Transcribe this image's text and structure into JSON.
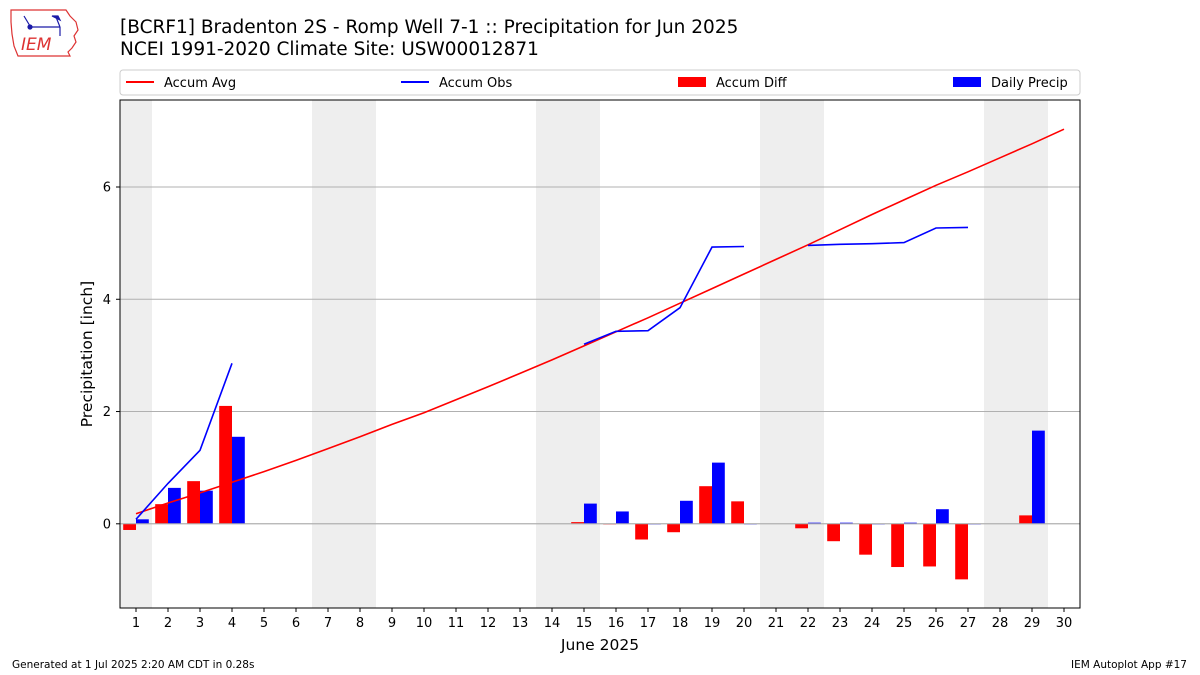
{
  "header": {
    "title_line1": "[BCRF1] Bradenton 2S - Romp Well 7-1 :: Precipitation for Jun 2025",
    "title_line2": "NCEI 1991-2020 Climate Site: USW00012871",
    "logo_text": "IEM"
  },
  "footer": {
    "generated": "Generated at 1 Jul 2025 2:20 AM CDT in 0.28s",
    "app": "IEM Autoplot App #17"
  },
  "colors": {
    "accum_avg": "#ff0000",
    "accum_obs": "#0000ff",
    "accum_diff": "#ff0000",
    "daily_precip": "#0000ff",
    "weekend_shade": "#eeeeee",
    "grid": "#b0b0b0"
  },
  "chart_data": {
    "type": "bar",
    "xlabel": "June 2025",
    "ylabel": "Precipitation [inch]",
    "xlim": [
      0.5,
      30.5
    ],
    "ylim": [
      -1.5,
      7.55
    ],
    "yticks": [
      0,
      2,
      4,
      6
    ],
    "grid": "horizontal",
    "legend_position": "top",
    "days": [
      1,
      2,
      3,
      4,
      5,
      6,
      7,
      8,
      9,
      10,
      11,
      12,
      13,
      14,
      15,
      16,
      17,
      18,
      19,
      20,
      21,
      22,
      23,
      24,
      25,
      26,
      27,
      28,
      29,
      30
    ],
    "weekend_days": [
      1,
      7,
      8,
      14,
      15,
      21,
      22,
      28,
      29
    ],
    "series": [
      {
        "name": "Accum Avg",
        "type": "line",
        "color": "#ff0000",
        "values": [
          0.18,
          0.37,
          0.55,
          0.74,
          0.93,
          1.13,
          1.34,
          1.55,
          1.77,
          1.98,
          2.21,
          2.44,
          2.68,
          2.92,
          3.17,
          3.42,
          3.67,
          3.93,
          4.19,
          4.45,
          4.71,
          4.97,
          5.24,
          5.51,
          5.77,
          6.03,
          6.27,
          6.52,
          6.77,
          7.03
        ]
      },
      {
        "name": "Accum Obs",
        "type": "line",
        "color": "#0000ff",
        "values": [
          0.08,
          0.72,
          1.31,
          2.86,
          null,
          null,
          null,
          null,
          null,
          null,
          null,
          null,
          null,
          null,
          3.2,
          3.43,
          3.44,
          3.85,
          4.93,
          4.94,
          null,
          4.96,
          4.98,
          4.99,
          5.01,
          5.27,
          5.28,
          null,
          null,
          null
        ]
      },
      {
        "name": "Accum Diff",
        "type": "bar",
        "color": "#ff0000",
        "values": [
          -0.11,
          0.35,
          0.76,
          2.1,
          null,
          null,
          null,
          null,
          null,
          null,
          null,
          null,
          null,
          null,
          0.03,
          -0.01,
          -0.28,
          -0.15,
          0.67,
          0.4,
          null,
          -0.08,
          -0.31,
          -0.55,
          -0.77,
          -0.76,
          -0.99,
          null,
          0.15,
          null
        ]
      },
      {
        "name": "Daily Precip",
        "type": "bar",
        "color": "#0000ff",
        "values": [
          0.08,
          0.64,
          0.59,
          1.55,
          null,
          null,
          null,
          null,
          null,
          null,
          null,
          null,
          null,
          null,
          0.36,
          0.22,
          0,
          0.41,
          1.09,
          0,
          null,
          0.02,
          0.02,
          0,
          0.02,
          0.26,
          0,
          null,
          1.66,
          null
        ]
      }
    ]
  }
}
